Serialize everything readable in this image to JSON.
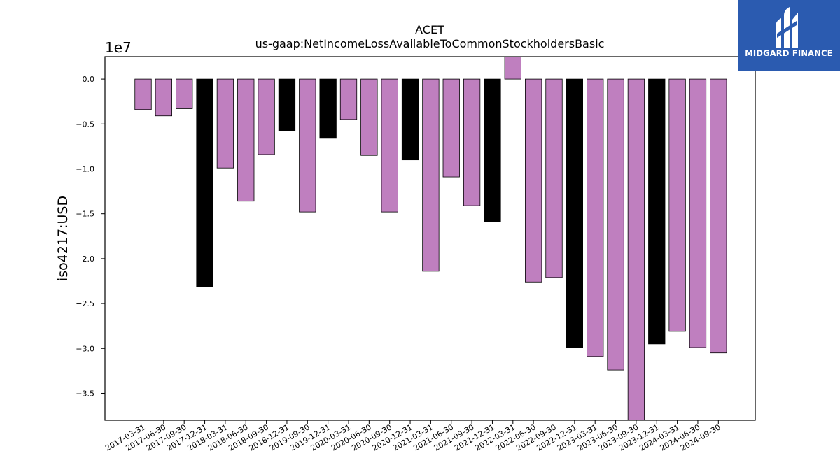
{
  "logo": {
    "text": "MIDGARD FINANCE"
  },
  "chart_data": {
    "type": "bar",
    "title": "ACET",
    "subtitle": "us-gaap:NetIncomeLossAvailableToCommonStockholdersBasic",
    "ylabel": "iso4217:USD",
    "xlabel": "",
    "scale_label": "1e7",
    "ylim": [
      -3.8,
      0.25
    ],
    "yticks": [
      0.0,
      -0.5,
      -1.0,
      -1.5,
      -2.0,
      -2.5,
      -3.0,
      -3.5
    ],
    "ytick_labels": [
      "0.0",
      "−0.5",
      "−1.0",
      "−1.5",
      "−2.0",
      "−2.5",
      "−3.0",
      "−3.5"
    ],
    "categories": [
      "2017-03-31",
      "2017-06-30",
      "2017-09-30",
      "2017-12-31",
      "2018-03-31",
      "2018-06-30",
      "2018-09-30",
      "2018-12-31",
      "2019-09-30",
      "2019-12-31",
      "2020-03-31",
      "2020-06-30",
      "2020-09-30",
      "2020-12-31",
      "2021-03-31",
      "2021-06-30",
      "2021-09-30",
      "2021-12-31",
      "2022-03-31",
      "2022-06-30",
      "2022-09-30",
      "2022-12-31",
      "2023-03-31",
      "2023-06-30",
      "2023-09-30",
      "2023-12-31",
      "2024-03-31",
      "2024-06-30",
      "2024-09-30"
    ],
    "values": [
      -0.34,
      -0.41,
      -0.33,
      -2.31,
      -0.99,
      -1.36,
      -0.84,
      -0.58,
      -1.48,
      -0.66,
      -0.45,
      -0.85,
      -1.48,
      -0.9,
      -2.14,
      -1.09,
      -1.41,
      -1.59,
      0.27,
      -2.26,
      -2.21,
      -2.99,
      -3.09,
      -3.24,
      -3.85,
      -2.95,
      -2.81,
      -2.99,
      -3.05
    ],
    "bar_colors": [
      "#bf7fbf",
      "#bf7fbf",
      "#bf7fbf",
      "#000000",
      "#bf7fbf",
      "#bf7fbf",
      "#bf7fbf",
      "#000000",
      "#bf7fbf",
      "#000000",
      "#bf7fbf",
      "#bf7fbf",
      "#bf7fbf",
      "#000000",
      "#bf7fbf",
      "#bf7fbf",
      "#bf7fbf",
      "#000000",
      "#bf7fbf",
      "#bf7fbf",
      "#bf7fbf",
      "#000000",
      "#bf7fbf",
      "#bf7fbf",
      "#bf7fbf",
      "#000000",
      "#bf7fbf",
      "#bf7fbf",
      "#bf7fbf"
    ],
    "grid": false,
    "legend": "none"
  }
}
